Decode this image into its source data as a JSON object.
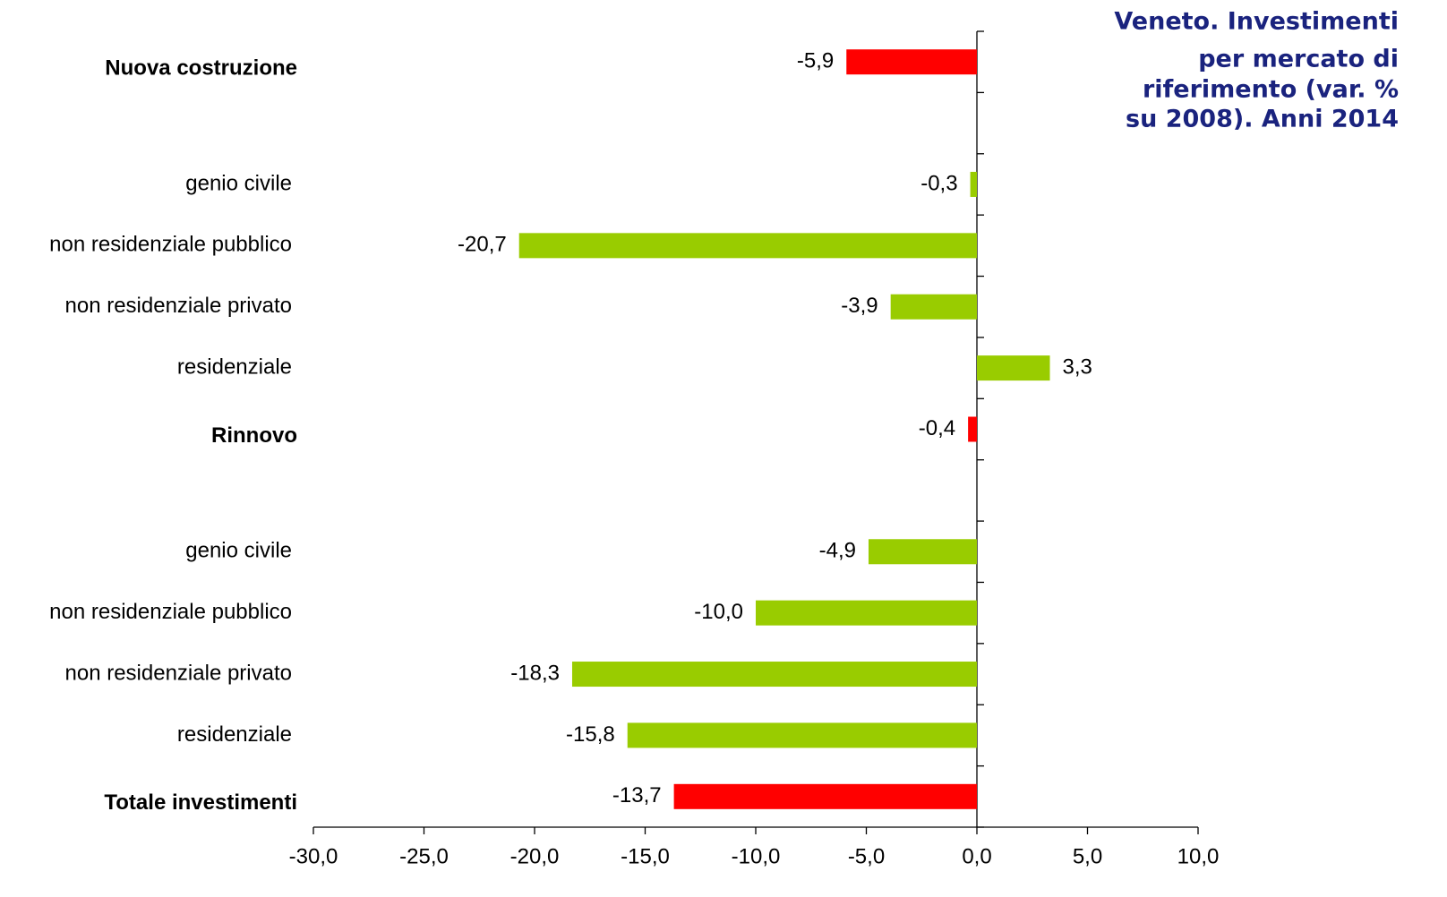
{
  "chart_data": {
    "type": "barh",
    "title": [
      "Veneto. Investimenti",
      "per mercato di",
      "riferimento (var. %",
      "su 2008). Anni 2014"
    ],
    "categories": [
      "Nuova costruzione",
      null,
      "genio civile",
      "non residenziale pubblico",
      "non residenziale privato",
      "residenziale",
      "Rinnovo",
      null,
      "genio civile",
      "non residenziale pubblico",
      "non residenziale privato",
      "residenziale",
      "Totale investimenti"
    ],
    "values": [
      -5.9,
      null,
      -0.3,
      -20.7,
      -3.9,
      3.3,
      -0.4,
      null,
      -4.9,
      -10.0,
      -18.3,
      -15.8,
      -13.7
    ],
    "value_labels": [
      "-5,9",
      null,
      "-0,3",
      "-20,7",
      "-3,9",
      "3,3",
      "-0,4",
      null,
      "-4,9",
      "-10,0",
      "-18,3",
      "-15,8",
      "-13,7"
    ],
    "colors": [
      "#ff0000",
      null,
      "#99cc00",
      "#99cc00",
      "#99cc00",
      "#99cc00",
      "#ff0000",
      null,
      "#99cc00",
      "#99cc00",
      "#99cc00",
      "#99cc00",
      "#ff0000"
    ],
    "xlim": [
      -30,
      10
    ],
    "xticks": [
      {
        "value": -30,
        "label": "-30,0"
      },
      {
        "value": -25,
        "label": "-25,0"
      },
      {
        "value": -20,
        "label": "-20,0"
      },
      {
        "value": -15,
        "label": "-15,0"
      },
      {
        "value": -10,
        "label": "-10,0"
      },
      {
        "value": -5,
        "label": "-5,0"
      },
      {
        "value": 0,
        "label": "0,0"
      },
      {
        "value": 5,
        "label": "5,0"
      },
      {
        "value": 10,
        "label": "10,0"
      }
    ],
    "grid": false
  }
}
